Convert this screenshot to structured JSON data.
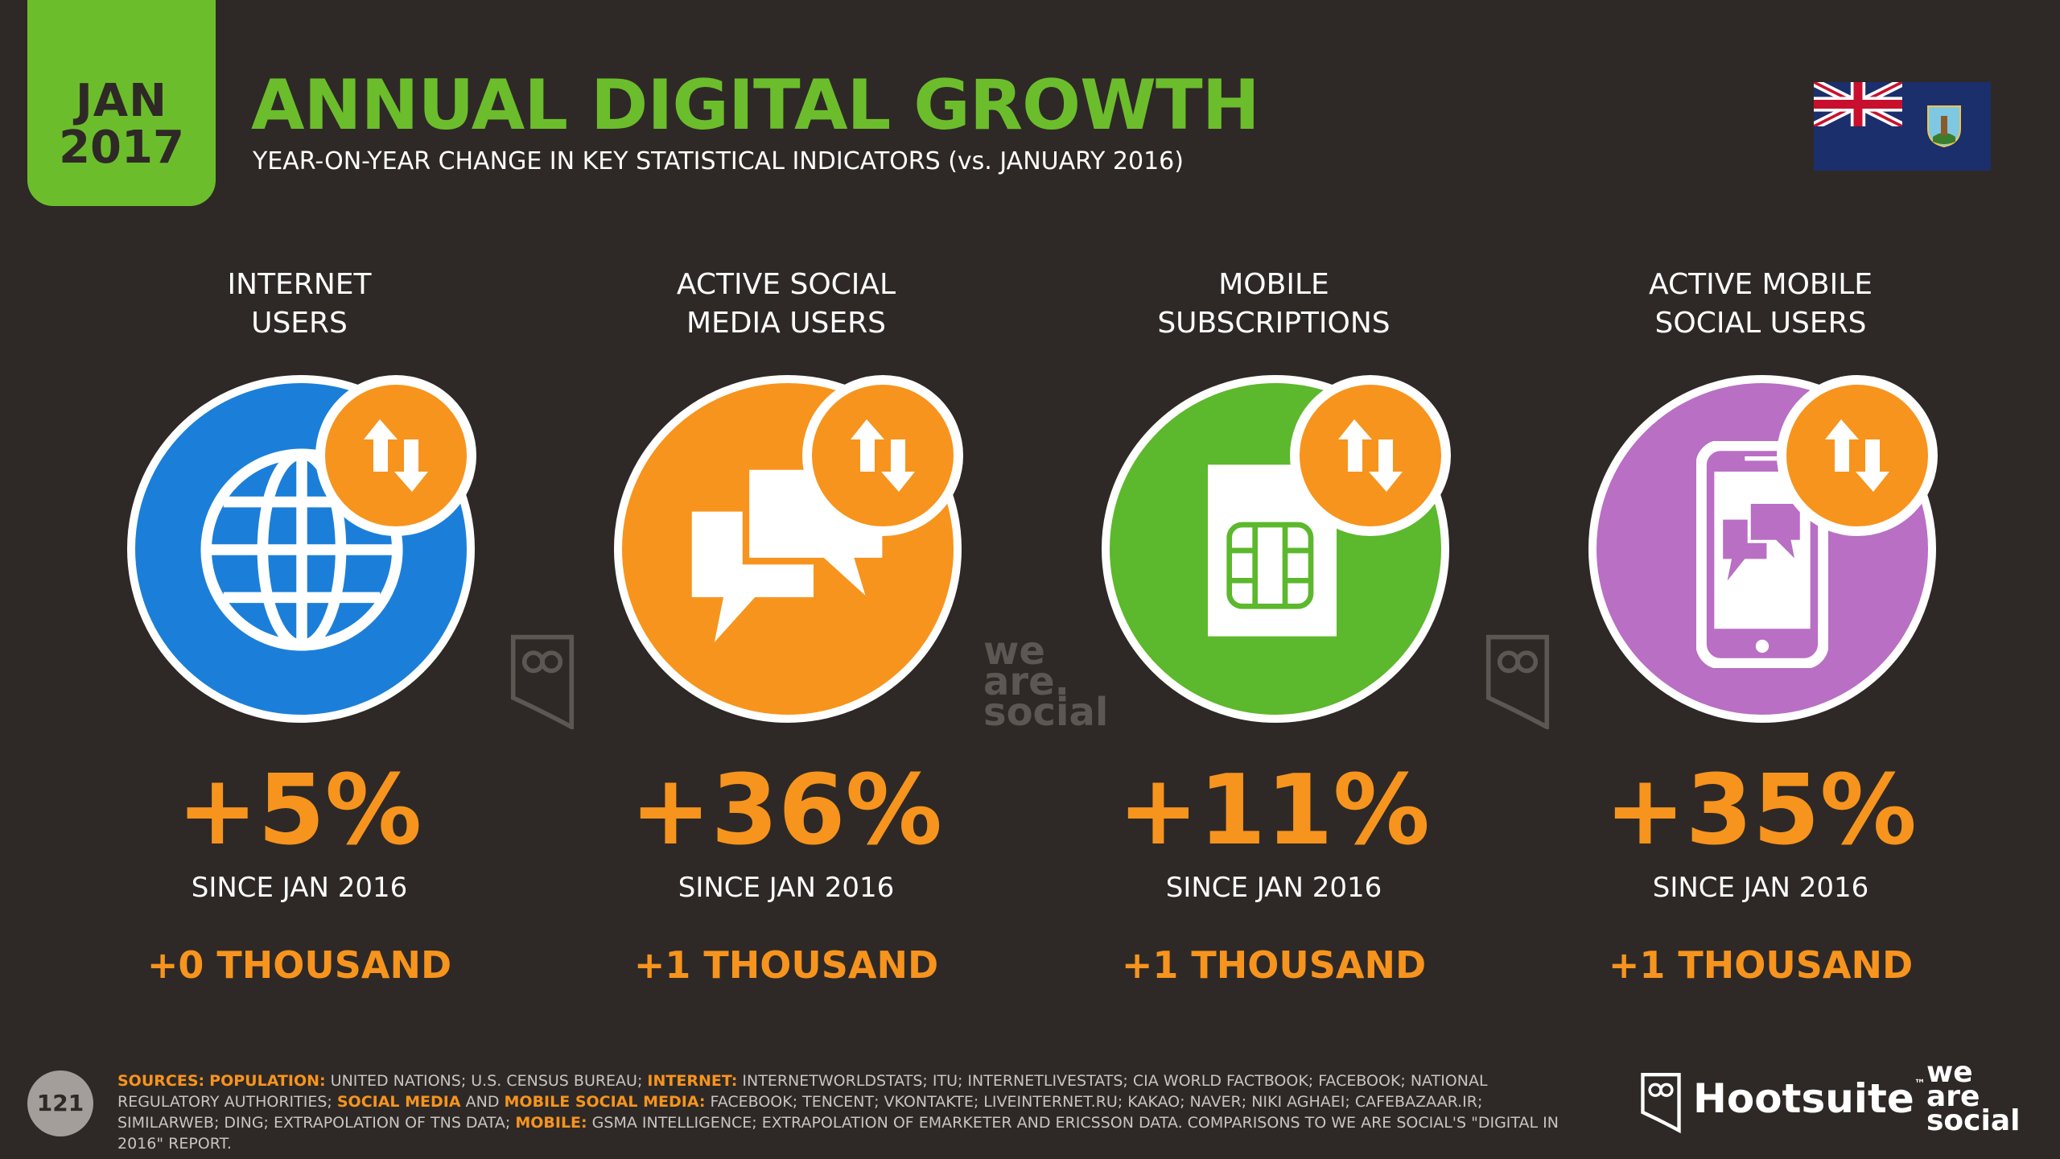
{
  "header": {
    "date_month": "JAN",
    "date_year": "2017",
    "title": "ANNUAL DIGITAL GROWTH",
    "subtitle": "YEAR-ON-YEAR CHANGE IN KEY STATISTICAL INDICATORS (vs. JANUARY 2016)"
  },
  "colors": {
    "background": "#2e2926",
    "accent_green": "#6cbd2c",
    "accent_orange": "#f7941d",
    "internet_blue": "#1b7fd9",
    "social_orange": "#f7941d",
    "mobile_green": "#5cb82c",
    "mobile_social_purple": "#b96fc4"
  },
  "stats": [
    {
      "label_line1": "INTERNET",
      "label_line2": "USERS",
      "icon": "globe-icon",
      "change_pct": "+5%",
      "since": "SINCE JAN 2016",
      "absolute": "+0 THOUSAND"
    },
    {
      "label_line1": "ACTIVE SOCIAL",
      "label_line2": "MEDIA USERS",
      "icon": "chat-bubbles-icon",
      "change_pct": "+36%",
      "since": "SINCE JAN 2016",
      "absolute": "+1 THOUSAND"
    },
    {
      "label_line1": "MOBILE",
      "label_line2": "SUBSCRIPTIONS",
      "icon": "sim-card-icon",
      "change_pct": "+11%",
      "since": "SINCE JAN 2016",
      "absolute": "+1 THOUSAND"
    },
    {
      "label_line1": "ACTIVE MOBILE",
      "label_line2": "SOCIAL USERS",
      "icon": "phone-chat-icon",
      "change_pct": "+35%",
      "since": "SINCE JAN 2016",
      "absolute": "+1 THOUSAND"
    }
  ],
  "watermark": {
    "line1": "we",
    "line2": "are.",
    "line3": "social"
  },
  "footer": {
    "page_number": "121",
    "sources_label": "SOURCES:",
    "population_label": "POPULATION:",
    "population_text": "UNITED NATIONS; U.S. CENSUS BUREAU;",
    "internet_label": "INTERNET:",
    "internet_text": "INTERNETWORLDSTATS; ITU; INTERNETLIVESTATS; CIA WORLD FACTBOOK; FACEBOOK; NATIONAL REGULATORY AUTHORITIES;",
    "social_label": "SOCIAL MEDIA",
    "and_text": "AND",
    "mobile_social_label": "MOBILE SOCIAL MEDIA:",
    "social_text": "FACEBOOK; TENCENT; VKONTAKTE; LIVEINTERNET.RU; KAKAO; NAVER; NIKI AGHAEI; CAFEBAZAAR.IR; SIMILARWEB; DING; EXTRAPOLATION OF TNS DATA;",
    "mobile_label": "MOBILE:",
    "mobile_text": "GSMA INTELLIGENCE; EXTRAPOLATION OF EMARKETER AND ERICSSON DATA. COMPARISONS TO WE ARE SOCIAL'S \"DIGITAL IN 2016\" REPORT.",
    "hootsuite": "Hootsuite",
    "tm": "™",
    "was_line1": "we",
    "was_line2": "are",
    "was_line3": "social"
  }
}
